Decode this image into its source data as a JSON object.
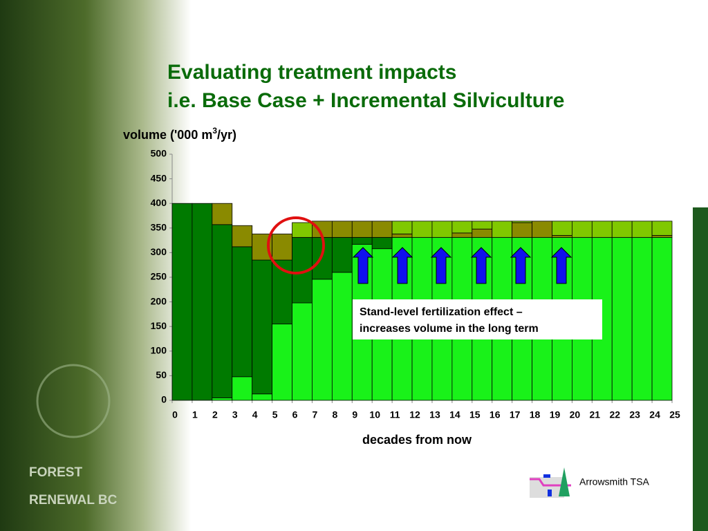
{
  "title_lines": [
    "Evaluating treatment impacts",
    "i.e. Base Case + Incremental Silviculture"
  ],
  "logo": {
    "lines": [
      "FOREST",
      "RENEWAL BC"
    ]
  },
  "footer": "Arrowsmith TSA",
  "chart_data": {
    "type": "bar",
    "stacked": true,
    "ylabel": [
      "volume ('000 m",
      "3",
      "/yr)"
    ],
    "xlabel": "decades from now",
    "annotation": [
      "Stand-level fertilization effect –",
      "increases volume in the long term"
    ],
    "xlim": [
      0,
      25
    ],
    "xticks": [
      0,
      1,
      2,
      3,
      4,
      5,
      6,
      7,
      8,
      9,
      10,
      11,
      12,
      13,
      14,
      15,
      16,
      17,
      18,
      19,
      20,
      21,
      22,
      23,
      24,
      25
    ],
    "ylim": [
      0,
      500
    ],
    "yticks": [
      0,
      50,
      100,
      150,
      200,
      250,
      300,
      350,
      400,
      450,
      500
    ],
    "series": [
      {
        "color": "#19f219",
        "values": [
          0,
          0,
          5,
          48,
          13,
          155,
          198,
          246,
          260,
          317,
          308,
          331,
          331,
          331,
          331,
          331,
          331,
          331,
          331,
          331,
          331,
          331,
          331,
          331,
          331
        ]
      },
      {
        "color": "#007a00",
        "values": [
          400,
          400,
          352,
          264,
          272,
          130,
          133,
          85,
          71,
          14,
          23,
          0,
          0,
          0,
          0,
          0,
          0,
          0,
          0,
          0,
          0,
          0,
          0,
          0,
          0
        ]
      },
      {
        "color": "#8a8a00",
        "values": [
          0,
          0,
          43,
          43,
          53,
          53,
          0,
          33,
          33,
          33,
          33,
          7,
          0,
          0,
          9,
          17,
          0,
          30,
          33,
          4,
          0,
          0,
          0,
          0,
          4
        ]
      },
      {
        "color": "#80c800",
        "values": [
          0,
          0,
          0,
          0,
          0,
          0,
          30,
          0,
          0,
          0,
          0,
          26,
          33,
          33,
          24,
          16,
          33,
          3,
          0,
          29,
          33,
          33,
          33,
          33,
          29
        ]
      }
    ]
  }
}
